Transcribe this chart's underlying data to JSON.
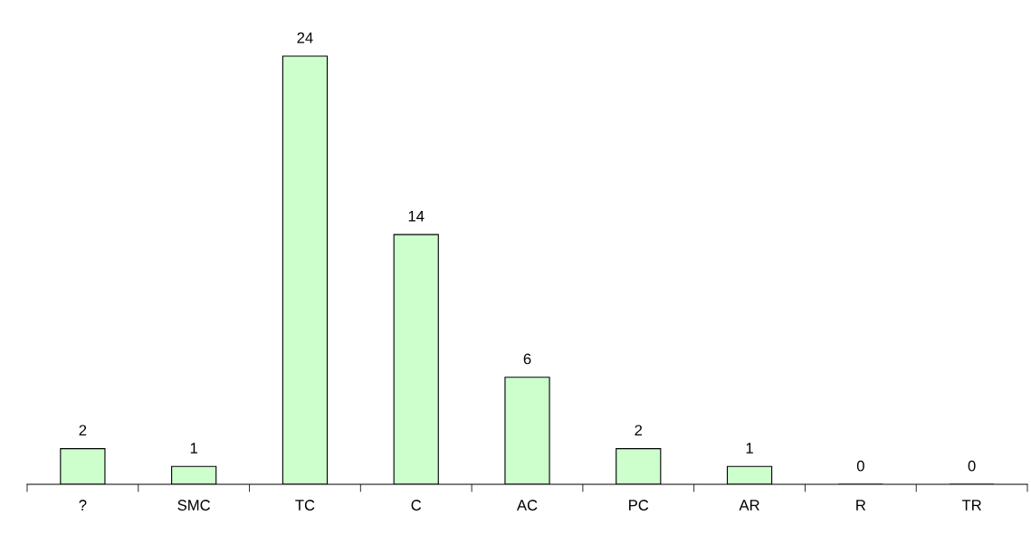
{
  "chart_data": {
    "type": "bar",
    "categories": [
      "?",
      "SMC",
      "TC",
      "C",
      "AC",
      "PC",
      "AR",
      "R",
      "TR"
    ],
    "values": [
      2,
      1,
      24,
      14,
      6,
      2,
      1,
      0,
      0
    ],
    "color": "#ccffcc",
    "data_labels": true,
    "grid": false,
    "legend": false
  }
}
